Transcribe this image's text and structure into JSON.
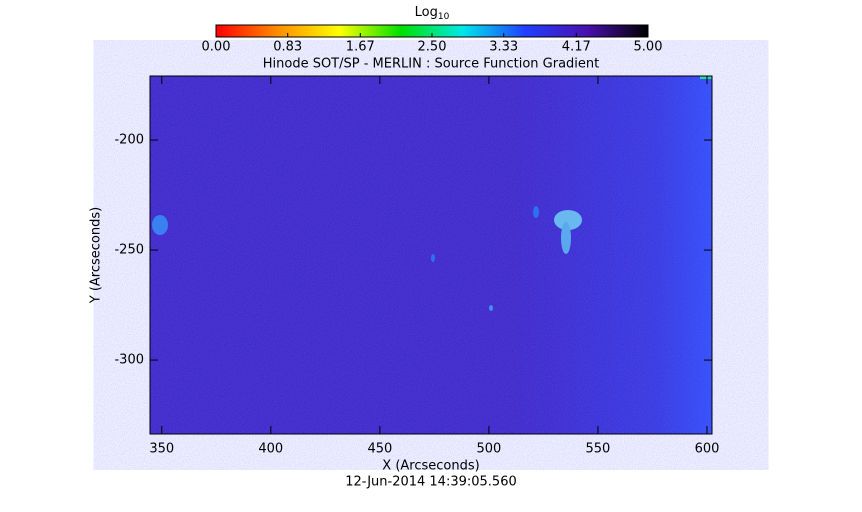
{
  "chart_data": {
    "type": "image",
    "title": "Hinode SOT/SP - MERLIN : Source Function Gradient",
    "xlabel": "X (Arcseconds)",
    "ylabel": "Y (Arcseconds)",
    "timestamp": "12-Jun-2014 14:39:05.560",
    "xlim": [
      344.6,
      602.3
    ],
    "ylim": [
      -333.6,
      -170.9
    ],
    "xticks": [
      350,
      400,
      450,
      500,
      550,
      600
    ],
    "yticks": [
      -200,
      -250,
      -300
    ],
    "colorbar": {
      "label": "Log",
      "label_subscript": "10",
      "clim": [
        0,
        5
      ],
      "colormap": [
        "#ff0000",
        "#ff8c00",
        "#ffff00",
        "#00e000",
        "#00e8e8",
        "#2040ff",
        "#4a10b0",
        "#000000"
      ],
      "ticks": [
        {
          "value": 0,
          "label": "0.00"
        },
        {
          "value": 0.83,
          "label": "0.83"
        },
        {
          "value": 1.67,
          "label": "1.67"
        },
        {
          "value": 2.5,
          "label": "2.50"
        },
        {
          "value": 3.33,
          "label": "3.33"
        },
        {
          "value": 4.17,
          "label": "4.17"
        },
        {
          "value": 5,
          "label": "5.00"
        }
      ]
    }
  }
}
